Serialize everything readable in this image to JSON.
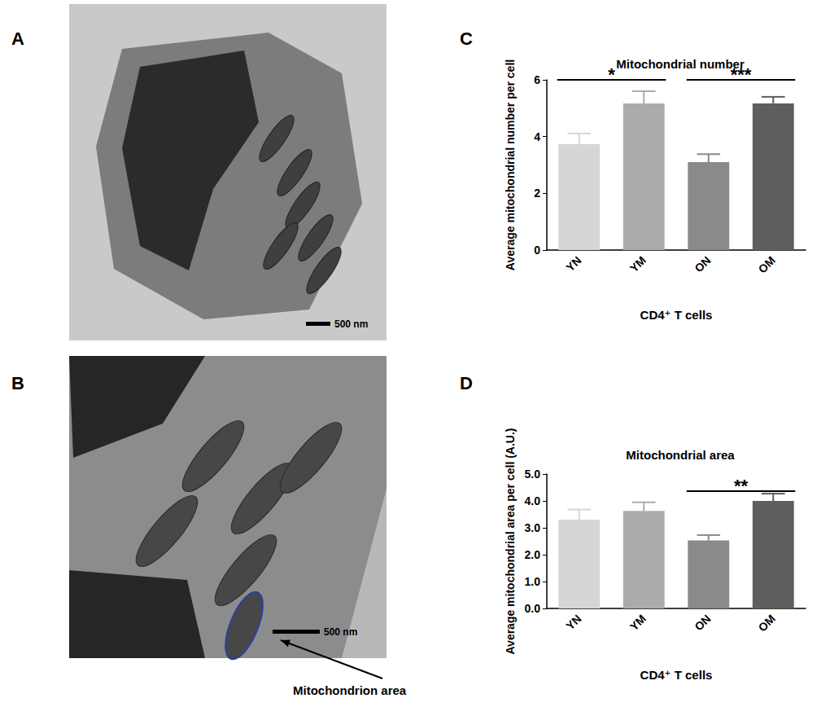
{
  "images": [
    {
      "panel": "A",
      "scale_bar": "500 nm"
    },
    {
      "panel": "B",
      "scale_bar": "500 nm",
      "annotation": "Mitochondrion area"
    }
  ],
  "chart_data": [
    {
      "type": "bar",
      "panel": "C",
      "title": "Mitochondrial number",
      "x_label": "CD4⁺ T cells",
      "y_label": "Average mitochondrial number per cell",
      "categories": [
        "YN",
        "YM",
        "ON",
        "OM"
      ],
      "values": [
        3.73,
        5.17,
        3.1,
        5.17
      ],
      "errors": [
        0.38,
        0.43,
        0.28,
        0.23
      ],
      "colors": [
        "#d6d6d6",
        "#ababab",
        "#8a8a8a",
        "#5e5e5e"
      ],
      "ylim": [
        0,
        6
      ],
      "yticks": [
        0,
        2,
        4,
        6
      ],
      "grid": false,
      "significance": [
        {
          "from": "YN",
          "to": "YM",
          "y": 6.0,
          "label": "*"
        },
        {
          "from": "ON",
          "to": "OM",
          "y": 6.0,
          "label": "***"
        }
      ]
    },
    {
      "type": "bar",
      "panel": "D",
      "title": "Mitochondrial area",
      "x_label": "CD4⁺ T cells",
      "y_label": "Average mitochondrial area per cell (A.U.)",
      "categories": [
        "YN",
        "YM",
        "ON",
        "OM"
      ],
      "values": [
        3.3,
        3.63,
        2.53,
        4.0
      ],
      "errors": [
        0.38,
        0.32,
        0.2,
        0.27
      ],
      "colors": [
        "#d6d6d6",
        "#ababab",
        "#8a8a8a",
        "#5e5e5e"
      ],
      "ylim": [
        0,
        5
      ],
      "yticks": [
        {
          "value": 0,
          "label": "0.0"
        },
        {
          "value": 1,
          "label": "1.0"
        },
        {
          "value": 2,
          "label": "2.0"
        },
        {
          "value": 3,
          "label": "3.0"
        },
        {
          "value": 4,
          "label": "4.0"
        },
        {
          "value": 5,
          "label": "5.0"
        }
      ],
      "grid": false,
      "significance": [
        {
          "from": "ON",
          "to": "OM",
          "y": 4.36,
          "label": "**"
        }
      ]
    }
  ]
}
